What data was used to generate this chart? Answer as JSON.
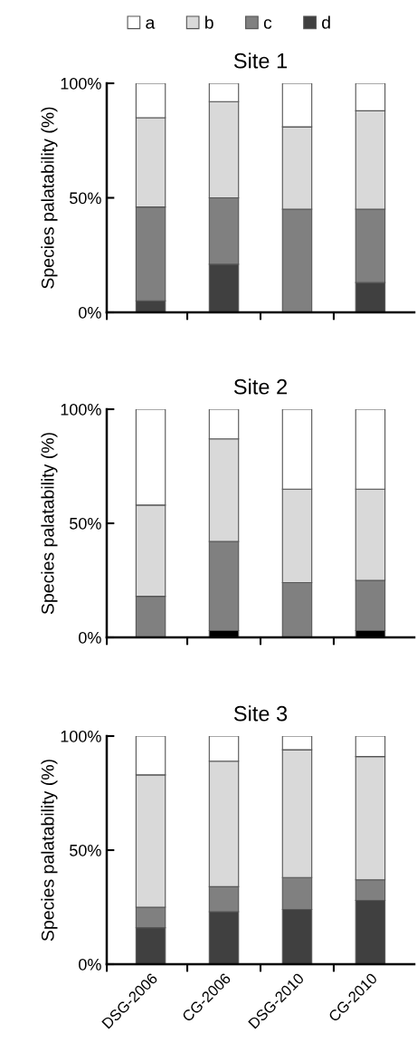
{
  "chart_data": [
    {
      "type": "bar",
      "stacked": true,
      "title": "Site 1",
      "ylabel": "Species palatability (%)",
      "categories": [
        null,
        null,
        null,
        null
      ],
      "ylim": [
        0,
        100
      ],
      "yticks": [
        {
          "value": 0,
          "label": "0%"
        },
        {
          "value": 50,
          "label": "50%"
        },
        {
          "value": 100,
          "label": "100%"
        }
      ],
      "tick_labels": "y",
      "legend": "top",
      "grid": false,
      "series": [
        {
          "name": "d",
          "color": "#404040",
          "values": [
            5,
            21,
            0,
            13
          ]
        },
        {
          "name": "c",
          "color": "#808080",
          "values": [
            41,
            29,
            45,
            32
          ]
        },
        {
          "name": "b",
          "color": "#d9d9d9",
          "values": [
            39,
            42,
            36,
            43
          ]
        },
        {
          "name": "a",
          "color": "#ffffff",
          "values": [
            15,
            8,
            19,
            12
          ]
        }
      ]
    },
    {
      "type": "bar",
      "stacked": true,
      "title": "Site 2",
      "ylabel": "Species palatability (%)",
      "categories": [
        null,
        null,
        null,
        null
      ],
      "ylim": [
        0,
        100
      ],
      "yticks": [
        {
          "value": 0,
          "label": "0%"
        },
        {
          "value": 50,
          "label": "50%"
        },
        {
          "value": 100,
          "label": "100%"
        }
      ],
      "tick_labels": "y",
      "grid": false,
      "series": [
        {
          "color": "#000000",
          "values": [
            0,
            3,
            0,
            3
          ]
        },
        {
          "color": "#808080",
          "values": [
            18,
            39,
            24,
            22
          ]
        },
        {
          "color": "#d9d9d9",
          "values": [
            40,
            45,
            41,
            40
          ]
        },
        {
          "color": "#ffffff",
          "values": [
            42,
            13,
            35,
            35
          ]
        }
      ]
    },
    {
      "type": "bar",
      "stacked": true,
      "title": "Site 3",
      "ylabel": "Species palatability (%)",
      "categories": [
        "DSG-2006",
        "CG-2006",
        "DSG-2010",
        "CG-2010"
      ],
      "ylim": [
        0,
        100
      ],
      "yticks": [
        {
          "value": 0,
          "label": "0%"
        },
        {
          "value": 50,
          "label": "50%"
        },
        {
          "value": 100,
          "label": "100%"
        }
      ],
      "grid": false,
      "series": [
        {
          "color": "#404040",
          "values": [
            16,
            23,
            24,
            28
          ]
        },
        {
          "color": "#808080",
          "values": [
            9,
            11,
            14,
            9
          ]
        },
        {
          "color": "#d9d9d9",
          "values": [
            58,
            55,
            56,
            54
          ]
        },
        {
          "color": "#ffffff",
          "values": [
            17,
            11,
            6,
            9
          ]
        }
      ]
    }
  ]
}
